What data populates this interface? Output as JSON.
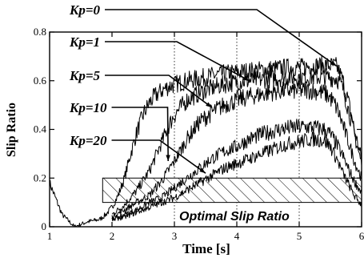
{
  "chart_data": {
    "type": "line",
    "title": "",
    "xlabel": "Time [s]",
    "ylabel": "Slip Ratio",
    "xlim": [
      1,
      6
    ],
    "ylim": [
      0,
      0.8
    ],
    "xticks": [
      1,
      2,
      3,
      4,
      5,
      6
    ],
    "yticks": [
      0,
      0.2,
      0.4,
      0.6,
      0.8
    ],
    "grid": "vertical dotted lines at x = 3, 4, 5",
    "series": [
      {
        "name": "Kp=0",
        "color": "#000000",
        "x": [
          1.0,
          1.2,
          1.4,
          1.6,
          1.8,
          1.9,
          2.0,
          2.1,
          2.2,
          2.3,
          2.4,
          2.5,
          2.6,
          2.7,
          2.8,
          2.9,
          3.0,
          3.2,
          3.4,
          3.6,
          3.8,
          4.0,
          4.2,
          4.4,
          4.6,
          4.8,
          5.0,
          5.2,
          5.4,
          5.6,
          5.7,
          5.8,
          5.9,
          6.0
        ],
        "y": [
          0.18,
          0.05,
          0.0,
          0.02,
          0.03,
          0.05,
          0.08,
          0.13,
          0.2,
          0.3,
          0.39,
          0.46,
          0.51,
          0.54,
          0.56,
          0.575,
          0.585,
          0.6,
          0.61,
          0.62,
          0.63,
          0.635,
          0.64,
          0.645,
          0.65,
          0.655,
          0.655,
          0.66,
          0.665,
          0.66,
          0.6,
          0.5,
          0.38,
          0.28
        ]
      },
      {
        "name": "Kp=1",
        "color": "#000000",
        "x": [
          2.0,
          2.2,
          2.4,
          2.6,
          2.7,
          2.8,
          2.9,
          3.0,
          3.2,
          3.4,
          3.6,
          3.8,
          4.0,
          4.2,
          4.4,
          4.6,
          4.8,
          5.0,
          5.2,
          5.4,
          5.6,
          5.7,
          5.8,
          5.9,
          6.0
        ],
        "y": [
          0.05,
          0.09,
          0.15,
          0.23,
          0.29,
          0.35,
          0.41,
          0.46,
          0.52,
          0.55,
          0.57,
          0.585,
          0.595,
          0.6,
          0.605,
          0.61,
          0.615,
          0.615,
          0.615,
          0.615,
          0.61,
          0.57,
          0.47,
          0.36,
          0.26
        ]
      },
      {
        "name": "Kp=5",
        "color": "#000000",
        "x": [
          2.0,
          2.2,
          2.4,
          2.6,
          2.8,
          3.0,
          3.2,
          3.4,
          3.6,
          3.8,
          4.0,
          4.2,
          4.4,
          4.6,
          4.8,
          5.0,
          5.2,
          5.4,
          5.5,
          5.6,
          5.7,
          5.8,
          5.9,
          6.0
        ],
        "y": [
          0.04,
          0.07,
          0.1,
          0.13,
          0.19,
          0.27,
          0.36,
          0.43,
          0.47,
          0.5,
          0.52,
          0.535,
          0.545,
          0.555,
          0.56,
          0.56,
          0.56,
          0.55,
          0.53,
          0.49,
          0.42,
          0.34,
          0.26,
          0.2
        ]
      },
      {
        "name": "Kp=10",
        "color": "#000000",
        "x": [
          2.0,
          2.2,
          2.4,
          2.6,
          2.8,
          3.0,
          3.2,
          3.4,
          3.6,
          3.8,
          4.0,
          4.2,
          4.4,
          4.6,
          4.8,
          5.0,
          5.2,
          5.4,
          5.5,
          5.6,
          5.7,
          5.8,
          5.9,
          6.0
        ],
        "y": [
          0.03,
          0.05,
          0.07,
          0.1,
          0.12,
          0.16,
          0.2,
          0.24,
          0.28,
          0.31,
          0.33,
          0.36,
          0.38,
          0.395,
          0.405,
          0.41,
          0.41,
          0.4,
          0.38,
          0.34,
          0.29,
          0.23,
          0.18,
          0.14
        ]
      },
      {
        "name": "Kp=20",
        "color": "#000000",
        "x": [
          2.0,
          2.2,
          2.4,
          2.6,
          2.8,
          3.0,
          3.2,
          3.4,
          3.6,
          3.8,
          4.0,
          4.2,
          4.4,
          4.6,
          4.8,
          5.0,
          5.2,
          5.4,
          5.5,
          5.6,
          5.7,
          5.8,
          5.9,
          6.0
        ],
        "y": [
          0.03,
          0.04,
          0.06,
          0.08,
          0.1,
          0.12,
          0.15,
          0.18,
          0.21,
          0.24,
          0.26,
          0.28,
          0.3,
          0.32,
          0.34,
          0.35,
          0.36,
          0.355,
          0.33,
          0.28,
          0.22,
          0.17,
          0.12,
          0.09
        ]
      }
    ],
    "annotations": [
      {
        "label": "Kp=0",
        "points_to": [
          5.6,
          0.66
        ]
      },
      {
        "label": "Kp=1",
        "points_to": [
          4.2,
          0.6
        ]
      },
      {
        "label": "Kp=5",
        "points_to": [
          3.6,
          0.49
        ]
      },
      {
        "label": "Kp=10",
        "points_to": [
          2.9,
          0.27
        ]
      },
      {
        "label": "Kp=20",
        "points_to": [
          3.5,
          0.22
        ]
      }
    ],
    "band": {
      "label": "Optimal Slip Ratio",
      "x": [
        1.85,
        6.0
      ],
      "y": [
        0.1,
        0.2
      ],
      "fill": "diagonal hatch"
    }
  }
}
